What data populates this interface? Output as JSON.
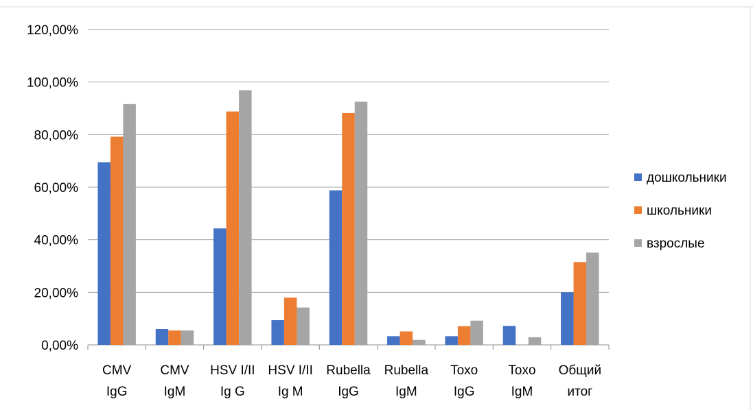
{
  "chart_data": {
    "type": "bar",
    "title": "",
    "xlabel": "",
    "ylabel": "",
    "categories": [
      [
        "CMV",
        "IgG"
      ],
      [
        "CMV",
        "IgM"
      ],
      [
        "HSV I/II",
        "Ig G"
      ],
      [
        "HSV I/II",
        "Ig M"
      ],
      [
        "Rubella",
        "IgG"
      ],
      [
        "Rubella",
        "IgM"
      ],
      [
        "Toxo",
        "IgG"
      ],
      [
        "Toxo",
        "IgM"
      ],
      [
        "Общий",
        "итог"
      ]
    ],
    "series": [
      {
        "name": "дошкольники",
        "color": "#4472C4",
        "values": [
          69.5,
          6.0,
          44.3,
          9.4,
          58.8,
          3.3,
          3.3,
          7.2,
          20.0
        ]
      },
      {
        "name": "школьники",
        "color": "#ED7D31",
        "values": [
          79.2,
          5.5,
          88.8,
          18.0,
          88.2,
          5.1,
          7.1,
          0.0,
          31.5
        ]
      },
      {
        "name": "взрослые",
        "color": "#A5A5A5",
        "values": [
          91.6,
          5.5,
          96.9,
          14.2,
          92.5,
          1.9,
          9.2,
          2.9,
          35.1
        ]
      }
    ],
    "ylim": [
      0,
      120
    ],
    "yticks": [
      "0,00%",
      "20,00%",
      "40,00%",
      "60,00%",
      "80,00%",
      "100,00%",
      "120,00%"
    ],
    "grid": true,
    "legend_position": "right"
  }
}
